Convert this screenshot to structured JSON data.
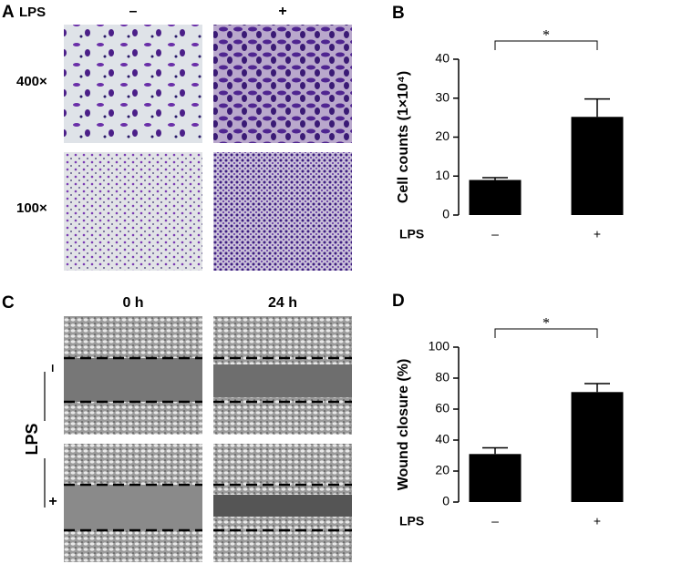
{
  "panels": {
    "a": {
      "label": "A",
      "row_title": "LPS",
      "col_minus": "–",
      "col_plus": "+",
      "mag_high": "400×",
      "mag_low": "100×"
    },
    "c": {
      "label": "C",
      "col_0h": "0 h",
      "col_24h": "24 h",
      "row_title": "LPS",
      "row_minus": "–",
      "row_plus": "+"
    }
  },
  "chart_data": [
    {
      "type": "bar",
      "panel_label": "B",
      "y_label": "Cell counts (1×10⁴)",
      "x_label": "LPS",
      "categories": [
        "–",
        "+"
      ],
      "values": [
        9,
        25.2
      ],
      "errors": [
        0.6,
        4.6
      ],
      "color": "#000000",
      "ylim": [
        0,
        40
      ],
      "yticks": [
        0,
        10,
        20,
        30,
        40
      ],
      "significance": "*"
    },
    {
      "type": "bar",
      "panel_label": "D",
      "y_label": "Wound closure (%)",
      "x_label": "LPS",
      "categories": [
        "–",
        "+"
      ],
      "values": [
        31,
        71
      ],
      "errors": [
        4,
        5.5
      ],
      "color": "#000000",
      "ylim": [
        0,
        100
      ],
      "yticks": [
        0,
        20,
        40,
        60,
        80,
        100
      ],
      "significance": "*"
    }
  ]
}
